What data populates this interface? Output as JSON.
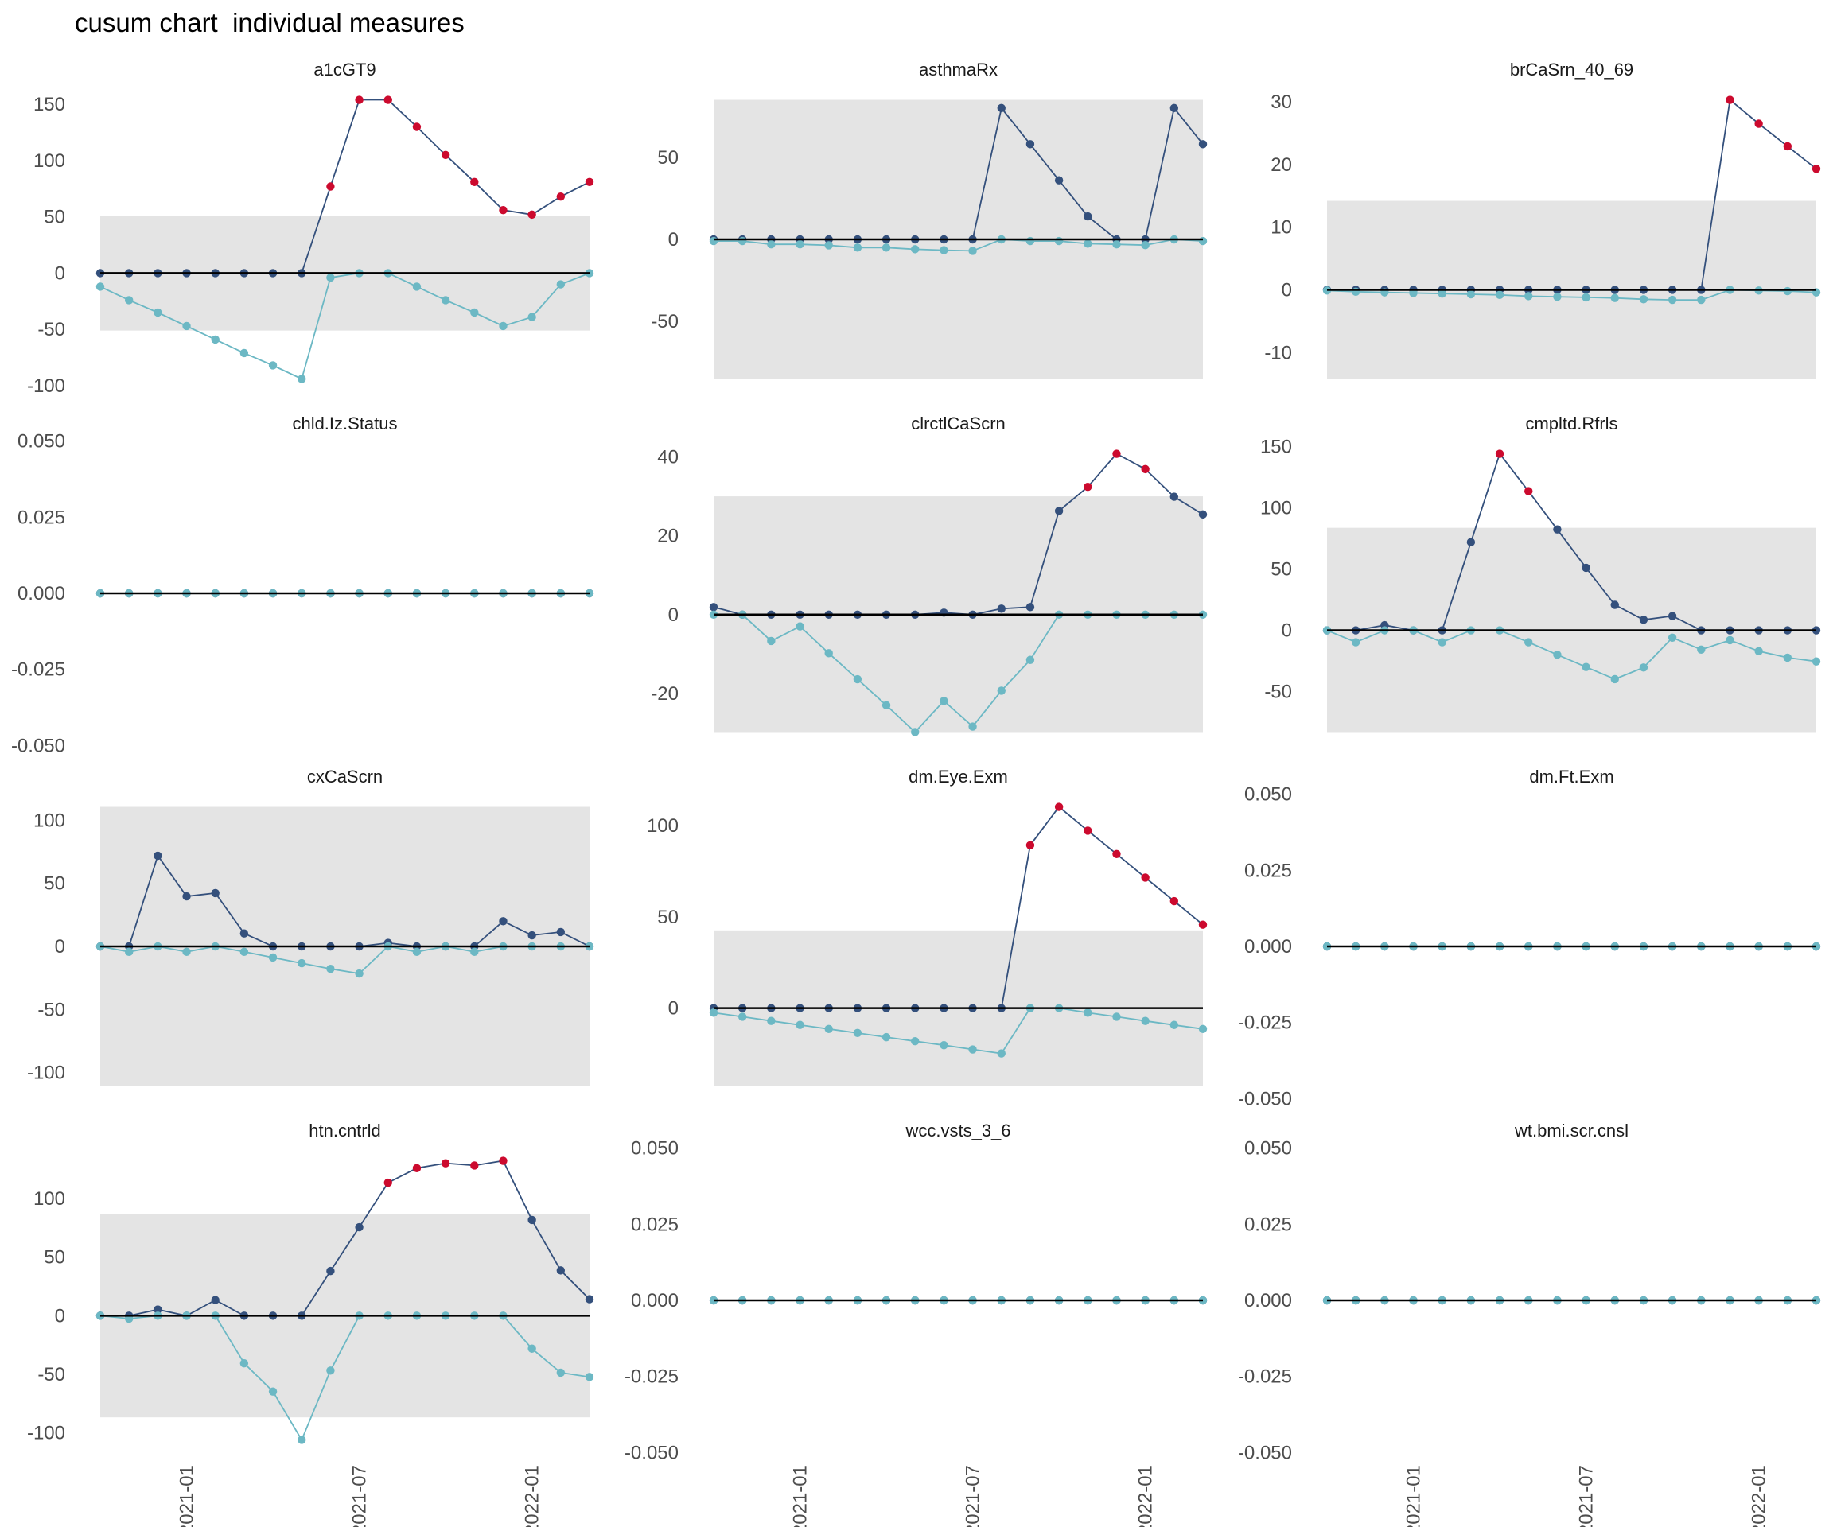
{
  "title": "cusum chart  individual measures",
  "chart_data": {
    "type": "line",
    "layout": "facet grid 4 rows x 3 columns",
    "x": [
      "2020-10",
      "2020-11",
      "2020-12",
      "2021-01",
      "2021-02",
      "2021-03",
      "2021-04",
      "2021-05",
      "2021-06",
      "2021-07",
      "2021-08",
      "2021-09",
      "2021-10",
      "2021-11",
      "2021-12",
      "2022-01",
      "2022-02",
      "2022-03"
    ],
    "x_ticks": [
      "2021-01",
      "2021-07",
      "2022-01"
    ],
    "colors": {
      "upper": "#34507c",
      "lower": "#6cb8c4",
      "out_of_control": "#cc0a2e",
      "band": "#e4e4e4",
      "zero_line": "#000000"
    },
    "grid": false,
    "panels": [
      {
        "title": "a1cGT9",
        "limit": 51,
        "y_ticks": [
          "-100",
          "-50",
          "0",
          "50",
          "100",
          "150"
        ],
        "upper": [
          0,
          0,
          0,
          0,
          0,
          0,
          0,
          0,
          77,
          154,
          154,
          130,
          105,
          81,
          56,
          52,
          68,
          81
        ],
        "lower": [
          -12,
          -24,
          -35,
          -47,
          -59,
          -71,
          -82,
          -94,
          -4,
          0,
          0,
          -12,
          -24,
          -35,
          -47,
          -39,
          -10,
          0
        ]
      },
      {
        "title": "asthmaRx",
        "limit": 85,
        "y_ticks": [
          "-50",
          "0",
          "50"
        ],
        "upper": [
          0,
          0,
          0,
          0,
          0,
          0,
          0,
          0,
          0,
          0,
          80,
          58,
          36,
          14,
          0,
          0,
          80,
          58
        ],
        "lower": [
          -1,
          -1,
          -3,
          -3,
          -3.6,
          -5,
          -5,
          -6,
          -6.6,
          -7,
          0,
          -1,
          -1,
          -2.6,
          -3,
          -3.5,
          0,
          -1
        ]
      },
      {
        "title": "brCaSrn_40_69",
        "limit": 14.2,
        "y_ticks": [
          "-10",
          "0",
          "10",
          "20",
          "30"
        ],
        "upper": [
          0,
          0,
          0,
          0,
          0,
          0,
          0,
          0,
          0,
          0,
          0,
          0,
          0,
          0,
          30.3,
          26.5,
          22.9,
          19.3
        ],
        "lower": [
          -0.1,
          -0.3,
          -0.4,
          -0.5,
          -0.6,
          -0.7,
          -0.8,
          -1.0,
          -1.1,
          -1.2,
          -1.3,
          -1.5,
          -1.6,
          -1.6,
          0,
          -0.1,
          -0.2,
          -0.4
        ]
      },
      {
        "title": "chld.Iz.Status",
        "limit": 0,
        "y_ticks": [
          "-0.050",
          "-0.025",
          "0.000",
          "0.025",
          "0.050"
        ],
        "upper": [
          0,
          0,
          0,
          0,
          0,
          0,
          0,
          0,
          0,
          0,
          0,
          0,
          0,
          0,
          0,
          0,
          0,
          0
        ],
        "lower": [
          0,
          0,
          0,
          0,
          0,
          0,
          0,
          0,
          0,
          0,
          0,
          0,
          0,
          0,
          0,
          0,
          0,
          0
        ]
      },
      {
        "title": "clrctlCaScrn",
        "limit": 30,
        "y_ticks": [
          "-20",
          "0",
          "20",
          "40"
        ],
        "upper": [
          1.9,
          0,
          0,
          0,
          0,
          0,
          0,
          0,
          0.5,
          0,
          1.5,
          1.9,
          26.3,
          32.4,
          40.8,
          36.9,
          29.9,
          25.4
        ],
        "lower": [
          0,
          0,
          -6.7,
          -3,
          -9.8,
          -16.4,
          -23,
          -29.8,
          -21.9,
          -28.4,
          -19.3,
          -11.5,
          0,
          0,
          0,
          0,
          0,
          0
        ]
      },
      {
        "title": "cmpltd.Rfrls",
        "limit": 83.6,
        "y_ticks": [
          "-50",
          "0",
          "50",
          "100",
          "150"
        ],
        "upper": [
          0,
          0,
          4.2,
          0,
          0,
          71.9,
          144,
          113.5,
          82.3,
          51,
          20.8,
          8.6,
          11.7,
          0,
          0,
          0,
          0,
          0
        ],
        "lower": [
          0,
          -9.7,
          0,
          0,
          -9.7,
          0,
          0,
          -9.7,
          -19.9,
          -29.9,
          -39.8,
          -30.3,
          -6,
          -15.7,
          -8,
          -17,
          -22.3,
          -25.4
        ]
      },
      {
        "title": "cxCaScrn",
        "limit": 110.6,
        "y_ticks": [
          "-100",
          "-50",
          "0",
          "50",
          "100"
        ],
        "upper": [
          0,
          0,
          71.9,
          39.7,
          42.3,
          10.3,
          0,
          0,
          0,
          0,
          2.8,
          0,
          0,
          0,
          20,
          8.8,
          11.4,
          0
        ],
        "lower": [
          0,
          -4.3,
          0,
          -4.3,
          0,
          -4.3,
          -8.8,
          -13.3,
          -17.8,
          -21.5,
          0,
          -4.3,
          0,
          -4.3,
          0,
          0,
          0,
          0
        ]
      },
      {
        "title": "dm.Eye.Exm",
        "limit": 42.6,
        "y_ticks": [
          "0",
          "50",
          "100"
        ],
        "upper": [
          0,
          0,
          0,
          0,
          0,
          0,
          0,
          0,
          0,
          0,
          0,
          89.2,
          110.2,
          97.2,
          84.4,
          71.5,
          58.6,
          45.7
        ],
        "lower": [
          -2.5,
          -4.7,
          -7,
          -9.2,
          -11.4,
          -13.6,
          -15.9,
          -18.1,
          -20.3,
          -22.6,
          -24.8,
          0,
          0,
          -2.5,
          -4.7,
          -7,
          -9.2,
          -11.4
        ]
      },
      {
        "title": "dm.Ft.Exm",
        "limit": 0,
        "y_ticks": [
          "-0.050",
          "-0.025",
          "0.000",
          "0.025",
          "0.050"
        ],
        "upper": [
          0,
          0,
          0,
          0,
          0,
          0,
          0,
          0,
          0,
          0,
          0,
          0,
          0,
          0,
          0,
          0,
          0,
          0
        ],
        "lower": [
          0,
          0,
          0,
          0,
          0,
          0,
          0,
          0,
          0,
          0,
          0,
          0,
          0,
          0,
          0,
          0,
          0,
          0
        ]
      },
      {
        "title": "htn.cntrld",
        "limit": 86.8,
        "y_ticks": [
          "-100",
          "-50",
          "0",
          "50",
          "100"
        ],
        "upper": [
          0,
          0,
          5.3,
          0,
          13.4,
          0,
          0,
          0,
          38.2,
          75.6,
          113.6,
          126,
          130.2,
          128.3,
          132.3,
          81.8,
          38.7,
          14.1
        ],
        "lower": [
          0,
          -2.5,
          0,
          0,
          0,
          -40.6,
          -64.7,
          -106,
          -46.8,
          0,
          0,
          0,
          0,
          0,
          0,
          -28.1,
          -48.6,
          -52.3
        ]
      },
      {
        "title": "wcc.vsts_3_6",
        "limit": 0,
        "y_ticks": [
          "-0.050",
          "-0.025",
          "0.000",
          "0.025",
          "0.050"
        ],
        "upper": [
          0,
          0,
          0,
          0,
          0,
          0,
          0,
          0,
          0,
          0,
          0,
          0,
          0,
          0,
          0,
          0,
          0,
          0
        ],
        "lower": [
          0,
          0,
          0,
          0,
          0,
          0,
          0,
          0,
          0,
          0,
          0,
          0,
          0,
          0,
          0,
          0,
          0,
          0
        ]
      },
      {
        "title": "wt.bmi.scr.cnsl",
        "limit": 0,
        "y_ticks": [
          "-0.050",
          "-0.025",
          "0.000",
          "0.025",
          "0.050"
        ],
        "upper": [
          0,
          0,
          0,
          0,
          0,
          0,
          0,
          0,
          0,
          0,
          0,
          0,
          0,
          0,
          0,
          0,
          0,
          0
        ],
        "lower": [
          0,
          0,
          0,
          0,
          0,
          0,
          0,
          0,
          0,
          0,
          0,
          0,
          0,
          0,
          0,
          0,
          0,
          0
        ]
      }
    ]
  }
}
